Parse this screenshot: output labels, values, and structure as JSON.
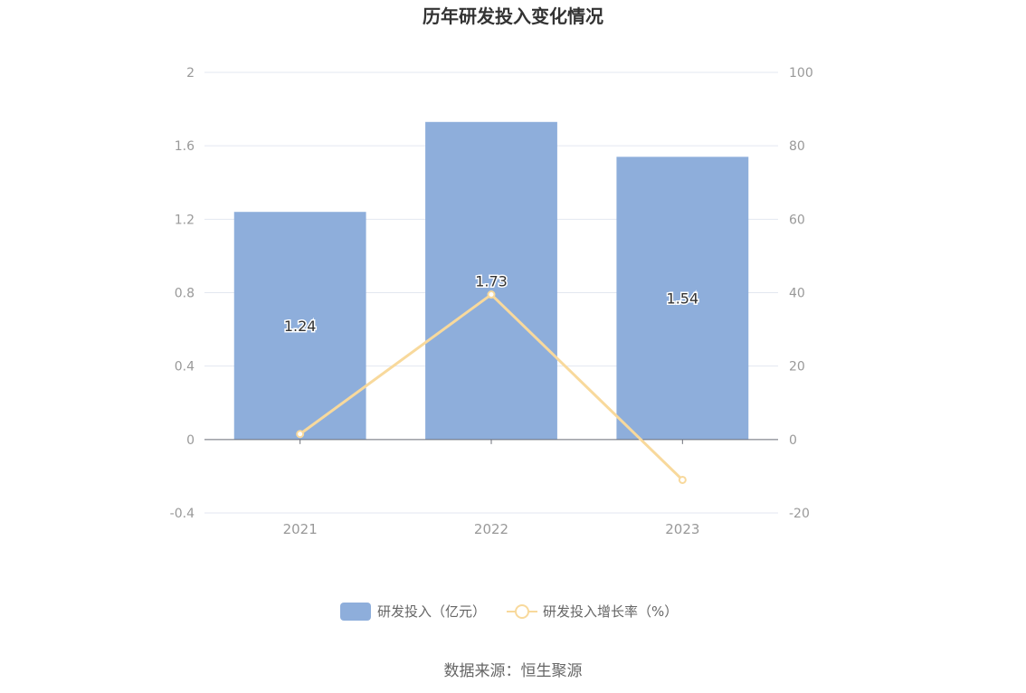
{
  "chart_data": {
    "type": "bar",
    "title": "历年研发投入变化情况",
    "categories": [
      "2021",
      "2022",
      "2023"
    ],
    "series": [
      {
        "name": "研发投入（亿元）",
        "type": "bar",
        "axis": "left",
        "values": [
          1.24,
          1.73,
          1.54
        ],
        "labels": [
          "1.24",
          "1.73",
          "1.54"
        ],
        "color": "#8eaedb"
      },
      {
        "name": "研发投入增长率（%）",
        "type": "line",
        "axis": "right",
        "values": [
          1.5,
          39.5,
          -11.0
        ],
        "color": "#f8d99c"
      }
    ],
    "y_left": {
      "min": -0.4,
      "max": 2,
      "ticks": [
        "2",
        "1.6",
        "1.2",
        "0.8",
        "0.4",
        "0",
        "-0.4"
      ]
    },
    "y_right": {
      "min": -20,
      "max": 100,
      "ticks": [
        "100",
        "80",
        "60",
        "40",
        "20",
        "0",
        "-20"
      ]
    },
    "grid": true,
    "legend_position": "bottom-center",
    "colors": {
      "grid": "#e3e7f0",
      "axis": "#6e7079"
    }
  },
  "source": "数据来源：恒生聚源"
}
